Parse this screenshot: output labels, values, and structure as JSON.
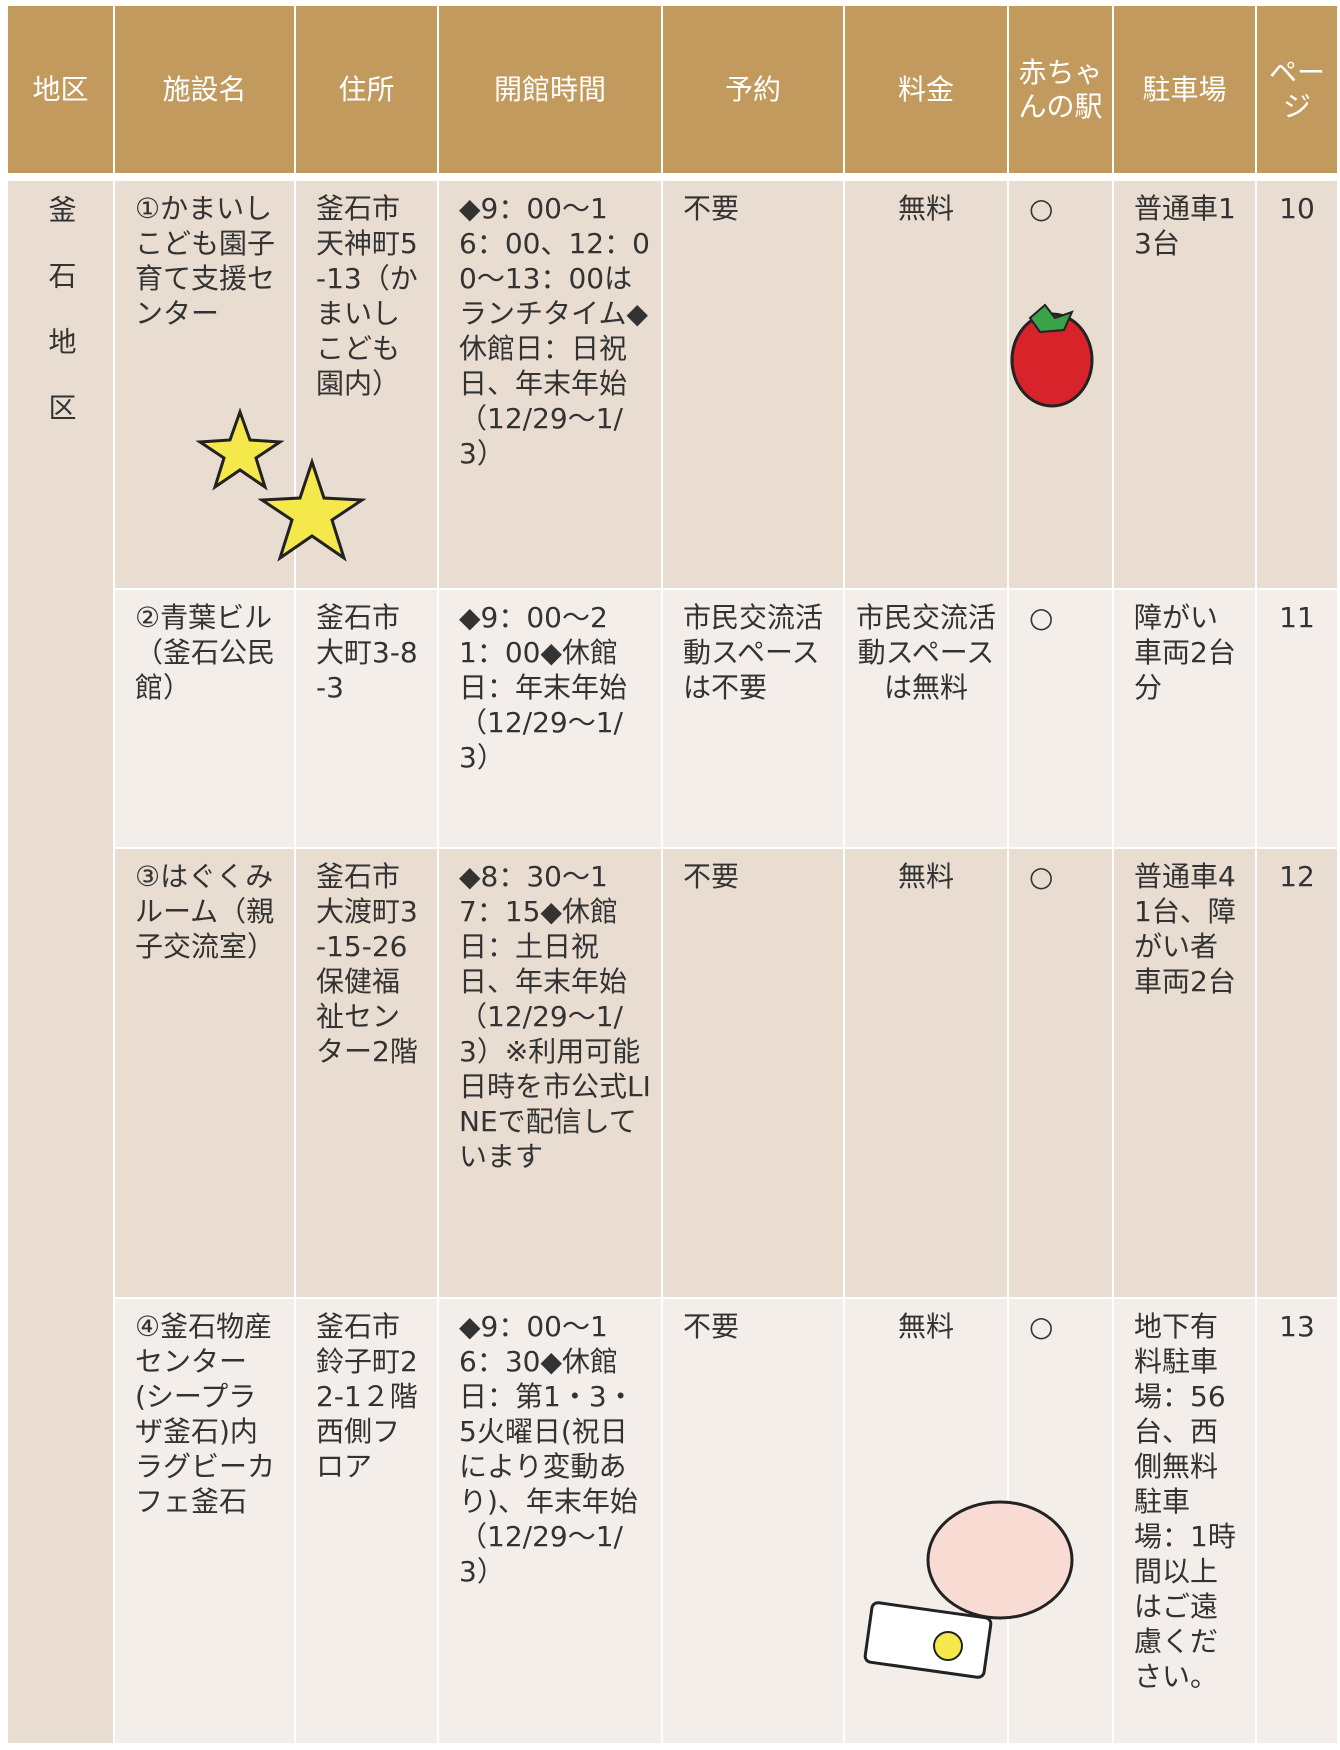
{
  "header": {
    "columns": [
      "地区",
      "施設名",
      "住所",
      "開館時間",
      "予約",
      "料金",
      "赤ちゃんの駅",
      "駐車場",
      "ページ"
    ]
  },
  "table": {
    "district": "釜石地区",
    "rows": [
      [
        "①かまいしこども園子育て支援センター",
        "釜石市天神町5-13（かまいしこども園内）",
        "◆9：00～16：00、12：00～13：00はランチタイム◆休館日：日祝日、年末年始（12/29～1/3）",
        "不要",
        "無料",
        "○",
        "普通車13台",
        "10"
      ],
      [
        "②青葉ビル（釜石公民館）",
        "釜石市大町3-8-3",
        "◆9：00～21：00◆休館日：年末年始（12/29～1/3）",
        "市民交流活動スペースは不要",
        "市民交流活動スペースは無料",
        "○",
        "障がい車両2台分",
        "11"
      ],
      [
        "③はぐくみルーム（親子交流室）",
        "釜石市大渡町3-15-26保健福祉センター2階",
        "◆8：30～17：15◆休館日：土日祝日、年末年始（12/29～1/3）※利用可能日時を市公式LINEで配信しています",
        "不要",
        "無料",
        "○",
        "普通車41台、障がい者車両2台",
        "12"
      ],
      [
        "④釜石物産センター(シープラザ釜石)内ラグビーカフェ釜石",
        "釜石市鈴子町22-1２階西側フロア",
        "◆9：00～16：30◆休館日：第1・3・5火曜日(祝日により変動あり)、年末年始（12/29～1/3）",
        "不要",
        "無料",
        "○",
        "地下有料駐車場：56台、西側無料駐車場：1時間以上はご遠慮ください。",
        "13"
      ]
    ]
  }
}
